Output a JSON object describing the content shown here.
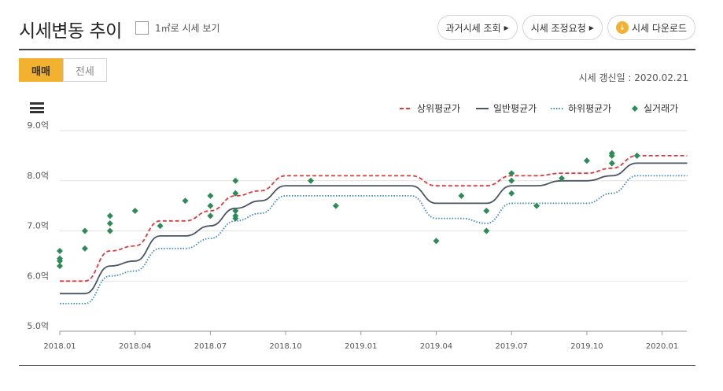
{
  "header": {
    "title": "시세변동 추이",
    "unit_toggle_label": "1㎡로 시세 보기",
    "buttons": [
      {
        "label": "과거시세 조회"
      },
      {
        "label": "시세 조정요청"
      },
      {
        "label": "시세 다운로드"
      }
    ]
  },
  "tabs": [
    {
      "label": "매매",
      "active": true
    },
    {
      "label": "전세",
      "active": false
    }
  ],
  "update_date": "시세 갱신일 : 2020.02.21",
  "colors": {
    "accent": "#f2b230",
    "upper": "#e03a3e",
    "normal": "#4a5563",
    "lower": "#3a87c9",
    "deal": "#2e8b57"
  },
  "chart_data": {
    "type": "line",
    "title": "",
    "xlabel": "",
    "ylabel": "",
    "x_range": [
      "2018.01",
      "2020.02"
    ],
    "ylim": [
      5.0,
      9.0
    ],
    "y_ticks": [
      "5.0억",
      "6.0억",
      "7.0억",
      "8.0억",
      "9.0억"
    ],
    "x_ticks": [
      "2018.01",
      "2018.04",
      "2018.07",
      "2018.10",
      "2019.01",
      "2019.04",
      "2019.07",
      "2019.10",
      "2020.01"
    ],
    "legend": {
      "position": "top-right"
    },
    "series": [
      {
        "name": "상위평균가",
        "style": "dashed",
        "points": [
          [
            "2018.01",
            6.0
          ],
          [
            "2018.02",
            6.0
          ],
          [
            "2018.03",
            6.6
          ],
          [
            "2018.04",
            6.7
          ],
          [
            "2018.05",
            7.2
          ],
          [
            "2018.06",
            7.2
          ],
          [
            "2018.07",
            7.4
          ],
          [
            "2018.08",
            7.7
          ],
          [
            "2018.09",
            7.8
          ],
          [
            "2018.10",
            8.1
          ],
          [
            "2019.03",
            8.1
          ],
          [
            "2019.04",
            7.9
          ],
          [
            "2019.06",
            7.9
          ],
          [
            "2019.07",
            8.1
          ],
          [
            "2019.08",
            8.1
          ],
          [
            "2019.09",
            8.15
          ],
          [
            "2019.10",
            8.15
          ],
          [
            "2019.11",
            8.25
          ],
          [
            "2019.12",
            8.5
          ],
          [
            "2020.02",
            8.5
          ]
        ]
      },
      {
        "name": "일반평균가",
        "style": "solid",
        "points": [
          [
            "2018.01",
            5.75
          ],
          [
            "2018.02",
            5.75
          ],
          [
            "2018.03",
            6.3
          ],
          [
            "2018.04",
            6.4
          ],
          [
            "2018.05",
            6.9
          ],
          [
            "2018.06",
            6.9
          ],
          [
            "2018.07",
            7.1
          ],
          [
            "2018.08",
            7.45
          ],
          [
            "2018.09",
            7.6
          ],
          [
            "2018.10",
            7.9
          ],
          [
            "2019.03",
            7.9
          ],
          [
            "2019.04",
            7.55
          ],
          [
            "2019.06",
            7.55
          ],
          [
            "2019.07",
            7.9
          ],
          [
            "2019.08",
            7.9
          ],
          [
            "2019.09",
            8.0
          ],
          [
            "2019.10",
            8.0
          ],
          [
            "2019.11",
            8.1
          ],
          [
            "2019.12",
            8.35
          ],
          [
            "2020.02",
            8.35
          ]
        ]
      },
      {
        "name": "하위평균가",
        "style": "dotted",
        "points": [
          [
            "2018.01",
            5.55
          ],
          [
            "2018.02",
            5.55
          ],
          [
            "2018.03",
            6.1
          ],
          [
            "2018.04",
            6.2
          ],
          [
            "2018.05",
            6.65
          ],
          [
            "2018.06",
            6.65
          ],
          [
            "2018.07",
            6.85
          ],
          [
            "2018.08",
            7.2
          ],
          [
            "2018.09",
            7.35
          ],
          [
            "2018.10",
            7.7
          ],
          [
            "2019.03",
            7.7
          ],
          [
            "2019.04",
            7.25
          ],
          [
            "2019.05",
            7.25
          ],
          [
            "2019.06",
            7.15
          ],
          [
            "2019.07",
            7.55
          ],
          [
            "2019.08",
            7.55
          ],
          [
            "2019.09",
            7.55
          ],
          [
            "2019.10",
            7.55
          ],
          [
            "2019.11",
            7.75
          ],
          [
            "2019.12",
            8.1
          ],
          [
            "2020.02",
            8.1
          ]
        ]
      },
      {
        "name": "실거래가",
        "style": "diamond",
        "points": [
          [
            "2018.01",
            6.6
          ],
          [
            "2018.01",
            6.45
          ],
          [
            "2018.01",
            6.4
          ],
          [
            "2018.01",
            6.3
          ],
          [
            "2018.02",
            7.0
          ],
          [
            "2018.02",
            6.65
          ],
          [
            "2018.03",
            7.3
          ],
          [
            "2018.03",
            7.15
          ],
          [
            "2018.03",
            7.0
          ],
          [
            "2018.04",
            7.4
          ],
          [
            "2018.05",
            7.1
          ],
          [
            "2018.06",
            7.6
          ],
          [
            "2018.07",
            7.7
          ],
          [
            "2018.07",
            7.5
          ],
          [
            "2018.07",
            7.3
          ],
          [
            "2018.08",
            8.0
          ],
          [
            "2018.08",
            7.75
          ],
          [
            "2018.08",
            7.4
          ],
          [
            "2018.08",
            7.3
          ],
          [
            "2018.08",
            7.25
          ],
          [
            "2018.11",
            8.0
          ],
          [
            "2018.12",
            7.5
          ],
          [
            "2019.04",
            6.8
          ],
          [
            "2019.05",
            7.7
          ],
          [
            "2019.06",
            7.4
          ],
          [
            "2019.06",
            7.0
          ],
          [
            "2019.07",
            8.15
          ],
          [
            "2019.07",
            8.0
          ],
          [
            "2019.07",
            7.75
          ],
          [
            "2019.08",
            7.5
          ],
          [
            "2019.09",
            8.05
          ],
          [
            "2019.10",
            8.4
          ],
          [
            "2019.11",
            8.55
          ],
          [
            "2019.11",
            8.5
          ],
          [
            "2019.11",
            8.35
          ],
          [
            "2019.12",
            8.5
          ]
        ]
      }
    ]
  }
}
